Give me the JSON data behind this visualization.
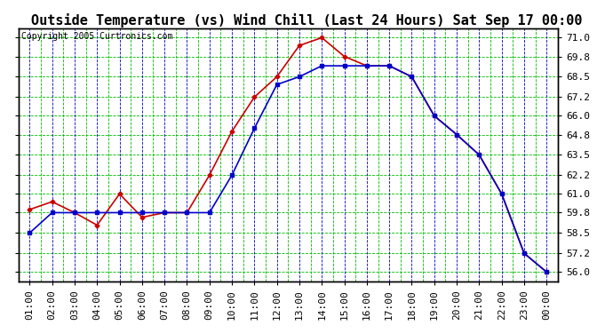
{
  "title": "Outside Temperature (vs) Wind Chill (Last 24 Hours) Sat Sep 17 00:00",
  "copyright": "Copyright 2005 Curtronics.com",
  "x_labels": [
    "01:00",
    "02:00",
    "03:00",
    "04:00",
    "05:00",
    "06:00",
    "07:00",
    "08:00",
    "09:00",
    "10:00",
    "11:00",
    "12:00",
    "13:00",
    "14:00",
    "15:00",
    "16:00",
    "17:00",
    "18:00",
    "19:00",
    "20:00",
    "21:00",
    "22:00",
    "23:00",
    "00:00"
  ],
  "y_ticks": [
    56.0,
    57.2,
    58.5,
    59.8,
    61.0,
    62.2,
    63.5,
    64.8,
    66.0,
    67.2,
    68.5,
    69.8,
    71.0
  ],
  "y_min": 55.4,
  "y_max": 71.6,
  "outside_temp": [
    60.0,
    60.5,
    59.8,
    59.0,
    61.0,
    59.5,
    59.8,
    59.8,
    62.2,
    65.0,
    67.2,
    68.5,
    70.5,
    71.0,
    69.8,
    69.2,
    69.2,
    68.5,
    66.0,
    64.8,
    63.5,
    61.0,
    57.2,
    56.0
  ],
  "wind_chill": [
    58.5,
    59.8,
    59.8,
    59.8,
    59.8,
    59.8,
    59.8,
    59.8,
    59.8,
    62.2,
    65.2,
    68.0,
    68.5,
    69.2,
    69.2,
    69.2,
    69.2,
    68.5,
    66.0,
    64.8,
    63.5,
    61.0,
    57.2,
    56.0
  ],
  "bg_color": "#ffffff",
  "plot_bg_color": "#ffffff",
  "border_color": "#000000",
  "temp_line_color": "#cc0000",
  "windchill_line_color": "#0000cc",
  "grid_color_blue": "#0000cc",
  "grid_color_green": "#00bb00",
  "title_fontsize": 11,
  "copyright_fontsize": 7,
  "tick_fontsize": 8
}
